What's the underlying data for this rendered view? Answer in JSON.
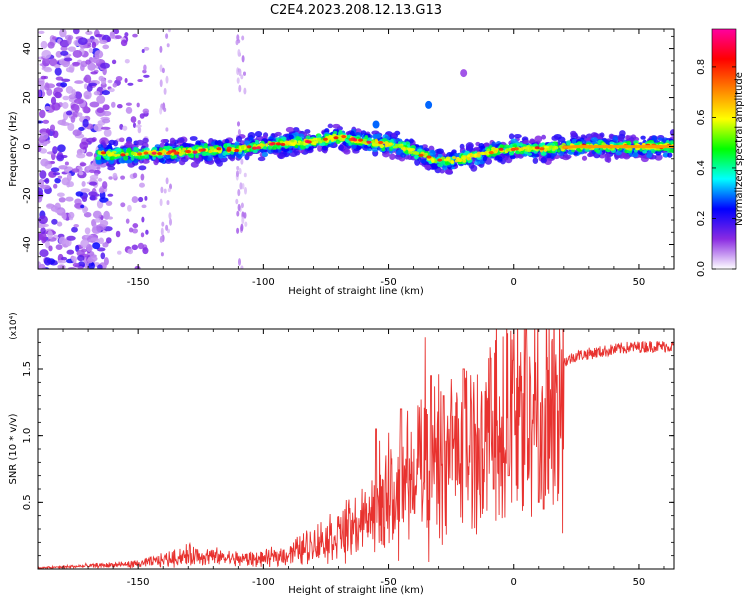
{
  "figure": {
    "title": "C2E4.2023.208.12.13.G13"
  },
  "chart_data": [
    {
      "type": "heatmap",
      "xlabel": "Height of straight line (km)",
      "ylabel": "Frequency (Hz)",
      "xlim": [
        -190,
        64
      ],
      "ylim": [
        -50,
        48
      ],
      "xticks": [
        -150,
        -100,
        -50,
        0,
        50
      ],
      "yticks": [
        -40,
        -20,
        0,
        20,
        40
      ],
      "colorbar": {
        "label": "Normalized spectral amplitude",
        "range": [
          0,
          0.95
        ],
        "ticks": [
          0.0,
          0.2,
          0.4,
          0.6,
          0.8
        ],
        "tick_labels": [
          "0.0",
          "0.2",
          "0.4",
          "0.6",
          "0.8"
        ],
        "colors": [
          "#ffffff",
          "#8a2be2",
          "#0000ff",
          "#00ffff",
          "#00ff00",
          "#ffff00",
          "#ff8000",
          "#ff0000",
          "#ff00a0"
        ]
      },
      "band_center": [
        [
          -165,
          -3
        ],
        [
          -150,
          -3
        ],
        [
          -130,
          -2
        ],
        [
          -110,
          -1
        ],
        [
          -95,
          1
        ],
        [
          -80,
          2
        ],
        [
          -70,
          4
        ],
        [
          -60,
          2
        ],
        [
          -45,
          0
        ],
        [
          -37,
          -3
        ],
        [
          -30,
          -6
        ],
        [
          -20,
          -5
        ],
        [
          -10,
          -2
        ],
        [
          0,
          -1
        ],
        [
          10,
          -1
        ],
        [
          25,
          0
        ],
        [
          45,
          0
        ],
        [
          63,
          0
        ]
      ],
      "features": [
        {
          "x": -34,
          "y": 17,
          "amp": 0.3
        },
        {
          "x": -55,
          "y": 9,
          "amp": 0.3
        },
        {
          "x": -20,
          "y": 30,
          "amp": 0.1
        }
      ],
      "grid": false
    },
    {
      "type": "line",
      "xlabel": "Height of straight line (km)",
      "ylabel": "SNR (10 * v/v)",
      "y_multiplier": "(x10⁴)",
      "xlim": [
        -190,
        64
      ],
      "ylim": [
        0,
        1.8
      ],
      "xticks": [
        -150,
        -100,
        -50,
        0,
        50
      ],
      "yticks": [
        0.5,
        1.0,
        1.5
      ],
      "ytick_labels": [
        "0.5",
        "1.0",
        "1.5"
      ],
      "color": "#e8322f",
      "envelope": [
        [
          -190,
          0.01
        ],
        [
          -170,
          0.03
        ],
        [
          -150,
          0.05
        ],
        [
          -140,
          0.09
        ],
        [
          -130,
          0.14
        ],
        [
          -120,
          0.12
        ],
        [
          -110,
          0.1
        ],
        [
          -100,
          0.1
        ],
        [
          -90,
          0.15
        ],
        [
          -80,
          0.25
        ],
        [
          -70,
          0.35
        ],
        [
          -60,
          0.45
        ],
        [
          -50,
          0.55
        ],
        [
          -40,
          0.75
        ],
        [
          -35,
          0.95
        ],
        [
          -30,
          0.85
        ],
        [
          -25,
          0.95
        ],
        [
          -20,
          1.0
        ],
        [
          -15,
          1.05
        ],
        [
          -10,
          1.1
        ],
        [
          -5,
          1.2
        ],
        [
          0,
          1.3
        ],
        [
          5,
          1.35
        ],
        [
          10,
          1.35
        ],
        [
          15,
          1.4
        ],
        [
          20,
          1.55
        ],
        [
          25,
          1.6
        ],
        [
          35,
          1.63
        ],
        [
          45,
          1.66
        ],
        [
          55,
          1.67
        ],
        [
          64,
          1.67
        ]
      ],
      "peaks": [
        [
          -55,
          1.05
        ],
        [
          -45,
          1.2
        ],
        [
          -33,
          1.45
        ],
        [
          -28,
          1.3
        ],
        [
          -20,
          1.5
        ],
        [
          5,
          1.8
        ],
        [
          12,
          1.55
        ]
      ],
      "dips": [
        [
          10,
          0.5
        ],
        [
          12,
          0.45
        ],
        [
          -2,
          0.7
        ],
        [
          -8,
          0.6
        ]
      ],
      "grid": false
    }
  ]
}
